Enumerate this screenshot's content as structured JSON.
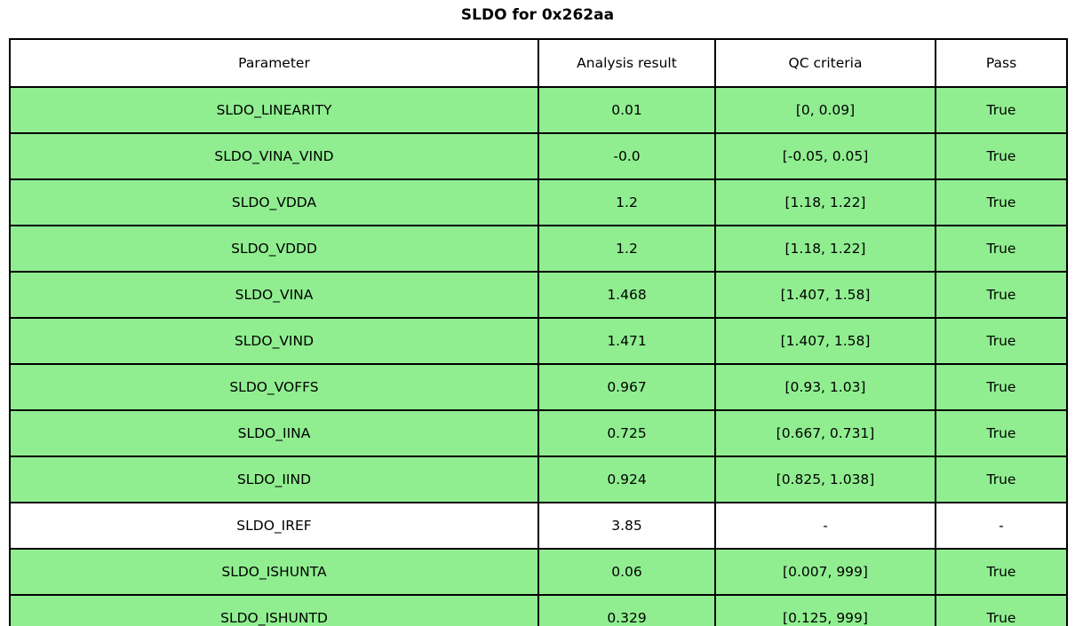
{
  "title": "SLDO for 0x262aa",
  "colors": {
    "pass_row_bg": "#90EE90",
    "plain_row_bg": "#FFFFFF",
    "border": "#000000",
    "text": "#000000"
  },
  "table": {
    "headers": [
      "Parameter",
      "Analysis result",
      "QC criteria",
      "Pass"
    ],
    "rows": [
      {
        "parameter": "SLDO_LINEARITY",
        "analysis_result": "0.01",
        "qc_criteria": "[0, 0.09]",
        "pass": "True",
        "highlight": true
      },
      {
        "parameter": "SLDO_VINA_VIND",
        "analysis_result": "-0.0",
        "qc_criteria": "[-0.05, 0.05]",
        "pass": "True",
        "highlight": true
      },
      {
        "parameter": "SLDO_VDDA",
        "analysis_result": "1.2",
        "qc_criteria": "[1.18, 1.22]",
        "pass": "True",
        "highlight": true
      },
      {
        "parameter": "SLDO_VDDD",
        "analysis_result": "1.2",
        "qc_criteria": "[1.18, 1.22]",
        "pass": "True",
        "highlight": true
      },
      {
        "parameter": "SLDO_VINA",
        "analysis_result": "1.468",
        "qc_criteria": "[1.407, 1.58]",
        "pass": "True",
        "highlight": true
      },
      {
        "parameter": "SLDO_VIND",
        "analysis_result": "1.471",
        "qc_criteria": "[1.407, 1.58]",
        "pass": "True",
        "highlight": true
      },
      {
        "parameter": "SLDO_VOFFS",
        "analysis_result": "0.967",
        "qc_criteria": "[0.93, 1.03]",
        "pass": "True",
        "highlight": true
      },
      {
        "parameter": "SLDO_IINA",
        "analysis_result": "0.725",
        "qc_criteria": "[0.667, 0.731]",
        "pass": "True",
        "highlight": true
      },
      {
        "parameter": "SLDO_IIND",
        "analysis_result": "0.924",
        "qc_criteria": "[0.825, 1.038]",
        "pass": "True",
        "highlight": true
      },
      {
        "parameter": "SLDO_IREF",
        "analysis_result": "3.85",
        "qc_criteria": "-",
        "pass": "-",
        "highlight": false
      },
      {
        "parameter": "SLDO_ISHUNTA",
        "analysis_result": "0.06",
        "qc_criteria": "[0.007, 999]",
        "pass": "True",
        "highlight": true
      },
      {
        "parameter": "SLDO_ISHUNTD",
        "analysis_result": "0.329",
        "qc_criteria": "[0.125, 999]",
        "pass": "True",
        "highlight": true
      }
    ]
  },
  "chart_data": {
    "type": "table",
    "title": "SLDO for 0x262aa",
    "columns": [
      "Parameter",
      "Analysis result",
      "QC criteria",
      "Pass"
    ],
    "rows": [
      [
        "SLDO_LINEARITY",
        "0.01",
        "[0, 0.09]",
        "True"
      ],
      [
        "SLDO_VINA_VIND",
        "-0.0",
        "[-0.05, 0.05]",
        "True"
      ],
      [
        "SLDO_VDDA",
        "1.2",
        "[1.18, 1.22]",
        "True"
      ],
      [
        "SLDO_VDDD",
        "1.2",
        "[1.18, 1.22]",
        "True"
      ],
      [
        "SLDO_VINA",
        "1.468",
        "[1.407, 1.58]",
        "True"
      ],
      [
        "SLDO_VIND",
        "1.471",
        "[1.407, 1.58]",
        "True"
      ],
      [
        "SLDO_VOFFS",
        "0.967",
        "[0.93, 1.03]",
        "True"
      ],
      [
        "SLDO_IINA",
        "0.725",
        "[0.667, 0.731]",
        "True"
      ],
      [
        "SLDO_IIND",
        "0.924",
        "[0.825, 1.038]",
        "True"
      ],
      [
        "SLDO_IREF",
        "3.85",
        "-",
        "-"
      ],
      [
        "SLDO_ISHUNTA",
        "0.06",
        "[0.007, 999]",
        "True"
      ],
      [
        "SLDO_ISHUNTD",
        "0.329",
        "[0.125, 999]",
        "True"
      ]
    ],
    "highlighted_rows": [
      0,
      1,
      2,
      3,
      4,
      5,
      6,
      7,
      8,
      10,
      11
    ],
    "row_highlight_color": "#90EE90",
    "legend_position": "none",
    "grid": "full-borders"
  }
}
